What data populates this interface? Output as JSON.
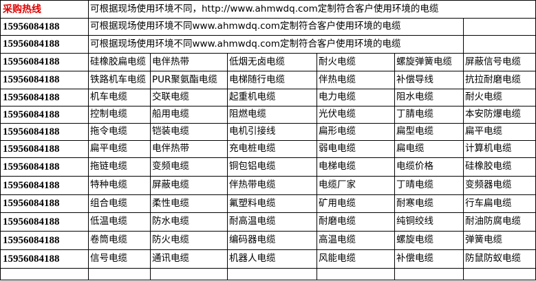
{
  "hotline_label": "采购热线",
  "hotline_color": "#e00000",
  "intro_line": "可根据现场使用环境不同，http://www.ahmwdq.com定制符合客户使用环境的电缆",
  "phone": "15956084188",
  "desc_rows": [
    "可根据现场使用环境不同www.ahmwdq.com定制符合客户使用环境的电缆",
    "可根据现场使用环境不同www.ahmwdq.com定制符合客户使用环境的电缆"
  ],
  "product_rows": [
    [
      "硅橡胶扁电缆",
      "电伴热带",
      "低烟无卤电缆",
      "耐火电缆",
      "螺旋弹簧电缆",
      "屏蔽信号电缆"
    ],
    [
      "铁路机车电缆",
      "PUR聚氨酯电缆",
      "电梯随行电缆",
      "伴热电缆",
      "补偿导线",
      "抗拉耐磨电缆"
    ],
    [
      "机车电缆",
      "交联电缆",
      "起重机电缆",
      "电力电缆",
      "阻水电缆",
      "耐火电缆"
    ],
    [
      "控制电缆",
      "船用电缆",
      "阻燃电缆",
      "光伏电缆",
      "丁腈电缆",
      "本安防爆电缆"
    ],
    [
      "拖令电缆",
      "铠装电缆",
      "电机引接线",
      "扁形电缆",
      "扁型电缆",
      "扁平电缆"
    ],
    [
      "扁平电缆",
      "电伴热带",
      "充电桩电缆",
      "弱电电缆",
      "扁电缆",
      "计算机电缆"
    ],
    [
      "拖链电缆",
      "变频电缆",
      "铜包铝电缆",
      "电梯电缆",
      "电缆价格",
      "硅橡胶电缆"
    ],
    [
      "特种电缆",
      "屏蔽电缆",
      "伴热带电缆",
      "电缆厂家",
      "丁晴电缆",
      "变频器电缆"
    ],
    [
      "组合电缆",
      "柔性电缆",
      "氟塑料电缆",
      "矿用电缆",
      "耐寒电缆",
      "行车扁电缆"
    ],
    [
      "低温电缆",
      "防水电缆",
      "耐高温电缆",
      "耐磨电缆",
      "纯铜绞线",
      "耐油防腐电缆"
    ],
    [
      "卷筒电缆",
      "防火电缆",
      "编码器电缆",
      "高温电缆",
      "螺旋电缆",
      "弹簧电缆"
    ],
    [
      "信号电缆",
      "通讯电缆",
      "机器人电缆",
      "风能电缆",
      "补偿电缆",
      "防鼠防蚁电缆"
    ]
  ]
}
